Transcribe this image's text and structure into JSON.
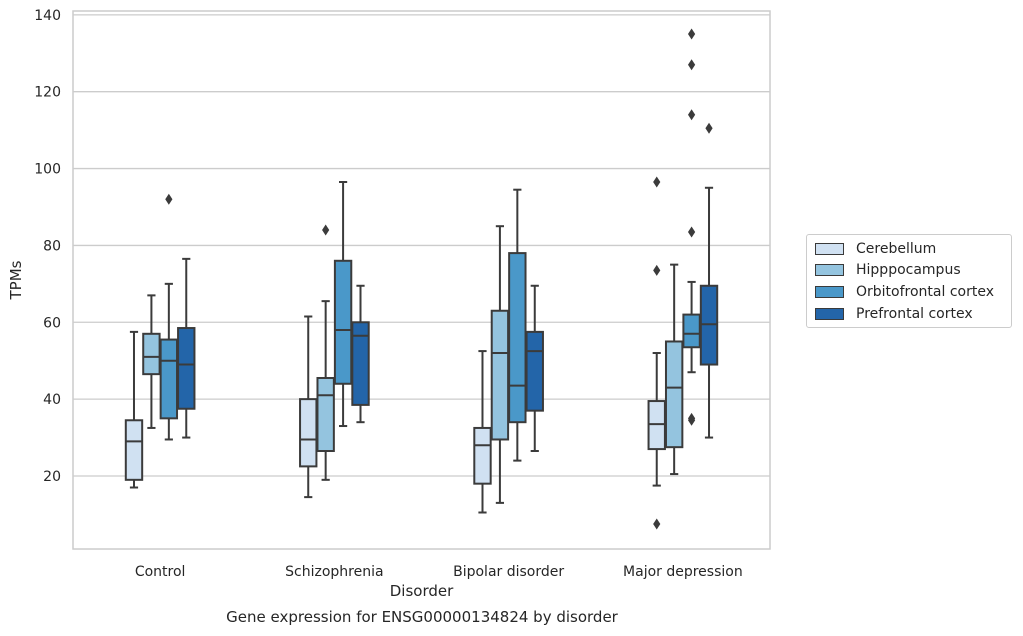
{
  "chart_data": {
    "type": "box",
    "caption": "Gene expression for ENSG00000134824 by disorder",
    "xlabel": "Disorder",
    "ylabel": "TPMs",
    "ylim": [
      1,
      141
    ],
    "yticks": [
      20,
      40,
      60,
      80,
      100,
      120,
      140
    ],
    "grid": "horizontal",
    "legend_position": "right",
    "categories": [
      "Control",
      "Schizophrenia",
      "Bipolar disorder",
      "Major depression"
    ],
    "series": [
      {
        "name": "Cerebellum",
        "color": "#d0e1f2",
        "boxes": [
          {
            "whislo": 17.0,
            "q1": 19.0,
            "med": 29.0,
            "q3": 34.5,
            "whishi": 57.5,
            "fliers": []
          },
          {
            "whislo": 14.5,
            "q1": 22.5,
            "med": 29.5,
            "q3": 40.0,
            "whishi": 61.5,
            "fliers": []
          },
          {
            "whislo": 10.5,
            "q1": 18.0,
            "med": 28.0,
            "q3": 32.5,
            "whishi": 52.5,
            "fliers": []
          },
          {
            "whislo": 17.5,
            "q1": 27.0,
            "med": 33.5,
            "q3": 39.5,
            "whishi": 52.0,
            "fliers": [
              7.5,
              73.5,
              96.5
            ]
          }
        ]
      },
      {
        "name": "Hipppocampus",
        "color": "#94c4df",
        "boxes": [
          {
            "whislo": 32.5,
            "q1": 46.5,
            "med": 51.0,
            "q3": 57.0,
            "whishi": 67.0,
            "fliers": []
          },
          {
            "whislo": 19.0,
            "q1": 26.5,
            "med": 41.0,
            "q3": 45.5,
            "whishi": 65.5,
            "fliers": [
              84.0
            ]
          },
          {
            "whislo": 13.0,
            "q1": 29.5,
            "med": 52.0,
            "q3": 63.0,
            "whishi": 85.0,
            "fliers": []
          },
          {
            "whislo": 20.5,
            "q1": 27.5,
            "med": 43.0,
            "q3": 55.0,
            "whishi": 75.0,
            "fliers": []
          }
        ]
      },
      {
        "name": "Orbitofrontal cortex",
        "color": "#4a98c9",
        "boxes": [
          {
            "whislo": 29.5,
            "q1": 35.0,
            "med": 50.0,
            "q3": 55.5,
            "whishi": 70.0,
            "fliers": [
              92.0
            ]
          },
          {
            "whislo": 33.0,
            "q1": 44.0,
            "med": 58.0,
            "q3": 76.0,
            "whishi": 96.5,
            "fliers": []
          },
          {
            "whislo": 24.0,
            "q1": 34.0,
            "med": 43.5,
            "q3": 78.0,
            "whishi": 94.5,
            "fliers": []
          },
          {
            "whislo": 47.0,
            "q1": 53.5,
            "med": 57.0,
            "q3": 62.0,
            "whishi": 70.5,
            "fliers": [
              34.5,
              35.0,
              83.5,
              114.0,
              127.0,
              135.0
            ]
          }
        ]
      },
      {
        "name": "Prefrontal cortex",
        "color": "#2365a9",
        "boxes": [
          {
            "whislo": 30.0,
            "q1": 37.5,
            "med": 49.0,
            "q3": 58.5,
            "whishi": 76.5,
            "fliers": []
          },
          {
            "whislo": 34.0,
            "q1": 38.5,
            "med": 56.5,
            "q3": 60.0,
            "whishi": 69.5,
            "fliers": []
          },
          {
            "whislo": 26.5,
            "q1": 37.0,
            "med": 52.5,
            "q3": 57.5,
            "whishi": 69.5,
            "fliers": []
          },
          {
            "whislo": 30.0,
            "q1": 49.0,
            "med": 59.5,
            "q3": 69.5,
            "whishi": 95.0,
            "fliers": [
              110.5
            ]
          }
        ]
      }
    ]
  }
}
